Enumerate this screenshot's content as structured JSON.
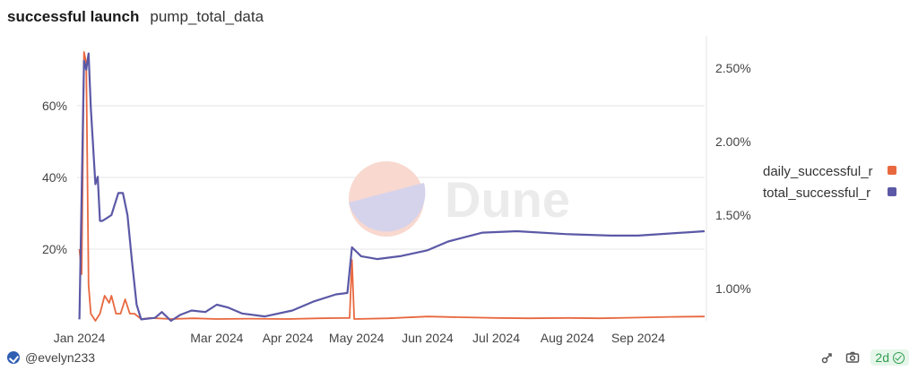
{
  "header": {
    "title": "successful launch",
    "subtitle": "pump_total_data"
  },
  "footer": {
    "author": "@evelyn233",
    "age_badge": "2d"
  },
  "watermark": "Dune",
  "colors": {
    "daily": "#e8683f",
    "total": "#5b58a6",
    "grid": "#e6e6e6",
    "axis_text": "#444444"
  },
  "icons": {
    "share": "share-icon",
    "camera": "camera-icon",
    "check": "check-circle-icon"
  },
  "chart_data": {
    "type": "line",
    "title": "",
    "x_tick_labels": [
      "Jan 2024",
      "Mar 2024",
      "Apr 2024",
      "May 2024",
      "Jun 2024",
      "Jul 2024",
      "Aug 2024",
      "Sep 2024"
    ],
    "x_tick_dates": [
      "2024-01-01",
      "2024-03-01",
      "2024-04-01",
      "2024-05-01",
      "2024-06-01",
      "2024-07-01",
      "2024-08-01",
      "2024-09-01"
    ],
    "x_range": [
      "2023-12-31",
      "2024-09-30"
    ],
    "y_left": {
      "ticks": [
        0.2,
        0.4,
        0.6
      ],
      "tick_labels": [
        "20%",
        "40%",
        "60%"
      ],
      "range": [
        0,
        0.75
      ]
    },
    "y_right": {
      "ticks": [
        0.01,
        0.015,
        0.02,
        0.025
      ],
      "tick_labels": [
        "1.00%",
        "1.50%",
        "2.00%",
        "2.50%"
      ],
      "range": [
        0.0078,
        0.0261
      ]
    },
    "legend": {
      "position": "right",
      "entries": [
        "daily_successful_r",
        "total_successful_r"
      ]
    },
    "grid": true,
    "series": [
      {
        "name": "daily_successful_r",
        "axis": "left",
        "points": [
          [
            "2024-01-01",
            0.2
          ],
          [
            "2024-01-02",
            0.13
          ],
          [
            "2024-01-03",
            0.75
          ],
          [
            "2024-01-04",
            0.72
          ],
          [
            "2024-01-05",
            0.1
          ],
          [
            "2024-01-06",
            0.02
          ],
          [
            "2024-01-08",
            0.0
          ],
          [
            "2024-01-10",
            0.02
          ],
          [
            "2024-01-12",
            0.07
          ],
          [
            "2024-01-14",
            0.05
          ],
          [
            "2024-01-15",
            0.07
          ],
          [
            "2024-01-17",
            0.02
          ],
          [
            "2024-01-19",
            0.02
          ],
          [
            "2024-01-21",
            0.06
          ],
          [
            "2024-01-23",
            0.02
          ],
          [
            "2024-01-25",
            0.02
          ],
          [
            "2024-01-28",
            0.005
          ],
          [
            "2024-02-01",
            0.008
          ],
          [
            "2024-02-10",
            0.005
          ],
          [
            "2024-02-20",
            0.007
          ],
          [
            "2024-03-01",
            0.005
          ],
          [
            "2024-03-15",
            0.006
          ],
          [
            "2024-04-01",
            0.005
          ],
          [
            "2024-04-15",
            0.007
          ],
          [
            "2024-04-28",
            0.008
          ],
          [
            "2024-04-29",
            0.17
          ],
          [
            "2024-04-30",
            0.005
          ],
          [
            "2024-05-15",
            0.007
          ],
          [
            "2024-06-01",
            0.012
          ],
          [
            "2024-06-15",
            0.01
          ],
          [
            "2024-07-01",
            0.008
          ],
          [
            "2024-07-15",
            0.007
          ],
          [
            "2024-08-01",
            0.008
          ],
          [
            "2024-08-15",
            0.007
          ],
          [
            "2024-09-01",
            0.009
          ],
          [
            "2024-09-15",
            0.011
          ],
          [
            "2024-09-30",
            0.012
          ]
        ]
      },
      {
        "name": "total_successful_r",
        "axis": "right",
        "points": [
          [
            "2024-01-01",
            0.0079
          ],
          [
            "2024-01-03",
            0.0255
          ],
          [
            "2024-01-04",
            0.0249
          ],
          [
            "2024-01-05",
            0.026
          ],
          [
            "2024-01-06",
            0.0223
          ],
          [
            "2024-01-08",
            0.0171
          ],
          [
            "2024-01-09",
            0.0176
          ],
          [
            "2024-01-10",
            0.0146
          ],
          [
            "2024-01-11",
            0.0146
          ],
          [
            "2024-01-12",
            0.0147
          ],
          [
            "2024-01-15",
            0.015
          ],
          [
            "2024-01-18",
            0.0165
          ],
          [
            "2024-01-20",
            0.0165
          ],
          [
            "2024-01-22",
            0.015
          ],
          [
            "2024-01-24",
            0.0118
          ],
          [
            "2024-01-26",
            0.0089
          ],
          [
            "2024-01-28",
            0.0079
          ],
          [
            "2024-02-03",
            0.008
          ],
          [
            "2024-02-06",
            0.0084
          ],
          [
            "2024-02-10",
            0.0078
          ],
          [
            "2024-02-14",
            0.0082
          ],
          [
            "2024-02-19",
            0.0085
          ],
          [
            "2024-02-25",
            0.0084
          ],
          [
            "2024-03-01",
            0.0089
          ],
          [
            "2024-03-06",
            0.0087
          ],
          [
            "2024-03-12",
            0.0083
          ],
          [
            "2024-03-22",
            0.0081
          ],
          [
            "2024-04-03",
            0.0085
          ],
          [
            "2024-04-12",
            0.0091
          ],
          [
            "2024-04-22",
            0.0096
          ],
          [
            "2024-04-27",
            0.0097
          ],
          [
            "2024-04-29",
            0.0128
          ],
          [
            "2024-05-03",
            0.0122
          ],
          [
            "2024-05-10",
            0.012
          ],
          [
            "2024-05-20",
            0.0122
          ],
          [
            "2024-06-01",
            0.0126
          ],
          [
            "2024-06-10",
            0.0132
          ],
          [
            "2024-06-25",
            0.0138
          ],
          [
            "2024-07-10",
            0.0139
          ],
          [
            "2024-08-01",
            0.0137
          ],
          [
            "2024-08-20",
            0.0136
          ],
          [
            "2024-09-01",
            0.0136
          ],
          [
            "2024-09-30",
            0.0139
          ]
        ]
      }
    ]
  }
}
